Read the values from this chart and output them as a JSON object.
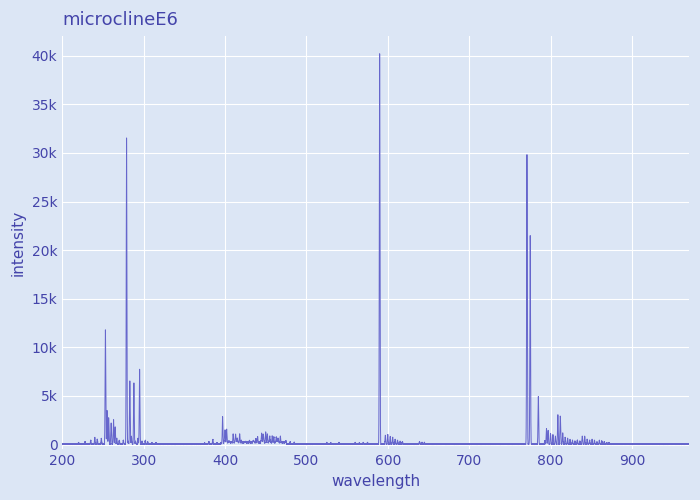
{
  "title": "microclineE6",
  "xlabel": "wavelength",
  "ylabel": "intensity",
  "xlim": [
    200,
    970
  ],
  "ylim": [
    -500,
    42000
  ],
  "fig_bg_color": "#dce6f5",
  "axes_bg_color": "#dce6f5",
  "line_color": "#6666cc",
  "line_width": 0.7,
  "title_color": "#4444aa",
  "label_color": "#4444aa",
  "tick_color": "#4444aa",
  "grid_color": "#ffffff",
  "grid_alpha": 1.0,
  "grid_linewidth": 0.8,
  "title_fontsize": 13,
  "label_fontsize": 11,
  "tick_fontsize": 10,
  "peaks": [
    [
      253,
      11800
    ],
    [
      255,
      3500
    ],
    [
      257,
      2700
    ],
    [
      260,
      2200
    ],
    [
      263,
      2500
    ],
    [
      265,
      1800
    ],
    [
      279,
      31500
    ],
    [
      283,
      6500
    ],
    [
      288,
      6300
    ],
    [
      295,
      7700
    ],
    [
      397,
      2800
    ],
    [
      400,
      1200
    ],
    [
      402,
      1300
    ],
    [
      410,
      800
    ],
    [
      413,
      900
    ],
    [
      415,
      500
    ],
    [
      418,
      800
    ],
    [
      440,
      500
    ],
    [
      445,
      1000
    ],
    [
      447,
      900
    ],
    [
      450,
      1000
    ],
    [
      452,
      800
    ],
    [
      455,
      700
    ],
    [
      458,
      600
    ],
    [
      460,
      500
    ],
    [
      463,
      600
    ],
    [
      465,
      500
    ],
    [
      468,
      600
    ],
    [
      590,
      40200
    ],
    [
      597,
      900
    ],
    [
      600,
      1000
    ],
    [
      603,
      800
    ],
    [
      606,
      700
    ],
    [
      771,
      29800
    ],
    [
      775,
      21500
    ],
    [
      785,
      4900
    ],
    [
      795,
      1600
    ],
    [
      797,
      1400
    ],
    [
      800,
      1100
    ],
    [
      803,
      1000
    ],
    [
      806,
      800
    ],
    [
      809,
      3000
    ],
    [
      812,
      2900
    ],
    [
      815,
      1200
    ],
    [
      818,
      700
    ],
    [
      821,
      600
    ],
    [
      824,
      500
    ],
    [
      827,
      400
    ],
    [
      830,
      300
    ],
    [
      833,
      400
    ],
    [
      836,
      300
    ],
    [
      839,
      800
    ],
    [
      842,
      800
    ],
    [
      845,
      500
    ],
    [
      848,
      400
    ],
    [
      851,
      500
    ],
    [
      854,
      400
    ]
  ],
  "small_peaks": [
    [
      220,
      150
    ],
    [
      228,
      250
    ],
    [
      235,
      400
    ],
    [
      240,
      700
    ],
    [
      243,
      500
    ],
    [
      248,
      600
    ],
    [
      267,
      600
    ],
    [
      270,
      400
    ],
    [
      275,
      400
    ],
    [
      281,
      300
    ],
    [
      285,
      800
    ],
    [
      290,
      300
    ],
    [
      293,
      600
    ],
    [
      298,
      300
    ],
    [
      302,
      400
    ],
    [
      305,
      250
    ],
    [
      310,
      150
    ],
    [
      315,
      150
    ],
    [
      375,
      120
    ],
    [
      380,
      250
    ],
    [
      385,
      500
    ],
    [
      390,
      150
    ],
    [
      395,
      150
    ],
    [
      399,
      300
    ],
    [
      405,
      200
    ],
    [
      420,
      150
    ],
    [
      425,
      150
    ],
    [
      430,
      150
    ],
    [
      435,
      250
    ],
    [
      438,
      300
    ],
    [
      475,
      250
    ],
    [
      480,
      250
    ],
    [
      485,
      200
    ],
    [
      525,
      180
    ],
    [
      530,
      130
    ],
    [
      540,
      170
    ],
    [
      560,
      170
    ],
    [
      565,
      130
    ],
    [
      570,
      170
    ],
    [
      575,
      170
    ],
    [
      609,
      500
    ],
    [
      612,
      400
    ],
    [
      615,
      300
    ],
    [
      618,
      250
    ],
    [
      639,
      250
    ],
    [
      642,
      180
    ],
    [
      645,
      180
    ],
    [
      793,
      350
    ],
    [
      857,
      250
    ],
    [
      860,
      400
    ],
    [
      863,
      320
    ],
    [
      866,
      250
    ],
    [
      869,
      180
    ],
    [
      872,
      160
    ]
  ]
}
